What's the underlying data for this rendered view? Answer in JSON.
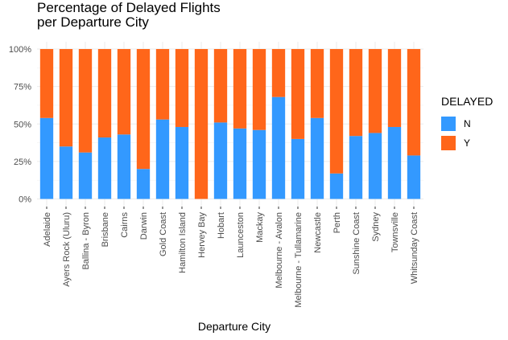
{
  "chart_data": {
    "type": "bar",
    "stacked": true,
    "percent": true,
    "title": "Percentage of Delayed Flights per Departure City",
    "title_lines": [
      "Percentage of Delayed Flights",
      "per Departure City"
    ],
    "xlabel": "Departure City",
    "ylabel": "",
    "ylim": [
      0,
      1
    ],
    "yticks": [
      0,
      0.25,
      0.5,
      0.75,
      1
    ],
    "ytick_labels": [
      "0%",
      "25%",
      "50%",
      "75%",
      "100%"
    ],
    "grid": true,
    "legend": {
      "title": "DELAYED",
      "position": "right"
    },
    "categories": [
      "Adelaide",
      "Ayers Rock (Uluru)",
      "Ballina - Byron",
      "Brisbane",
      "Cairns",
      "Darwin",
      "Gold Coast",
      "Hamilton Island",
      "Hervey Bay",
      "Hobart",
      "Launceston",
      "Mackay",
      "Melbourne - Avalon",
      "Melbourne - Tullamarine",
      "Newcastle",
      "Perth",
      "Sunshine Coast",
      "Sydney",
      "Townsville",
      "Whitsunday Coast"
    ],
    "series": [
      {
        "name": "N",
        "color": "#3399ff",
        "values": [
          0.54,
          0.35,
          0.31,
          0.41,
          0.43,
          0.2,
          0.53,
          0.48,
          0.0,
          0.51,
          0.47,
          0.46,
          0.68,
          0.4,
          0.54,
          0.17,
          0.42,
          0.44,
          0.48,
          0.29
        ]
      },
      {
        "name": "Y",
        "color": "#ff661a",
        "values": [
          0.46,
          0.65,
          0.69,
          0.59,
          0.57,
          0.8,
          0.47,
          0.52,
          1.0,
          0.49,
          0.53,
          0.54,
          0.32,
          0.6,
          0.46,
          0.83,
          0.58,
          0.56,
          0.52,
          0.71
        ]
      }
    ]
  }
}
